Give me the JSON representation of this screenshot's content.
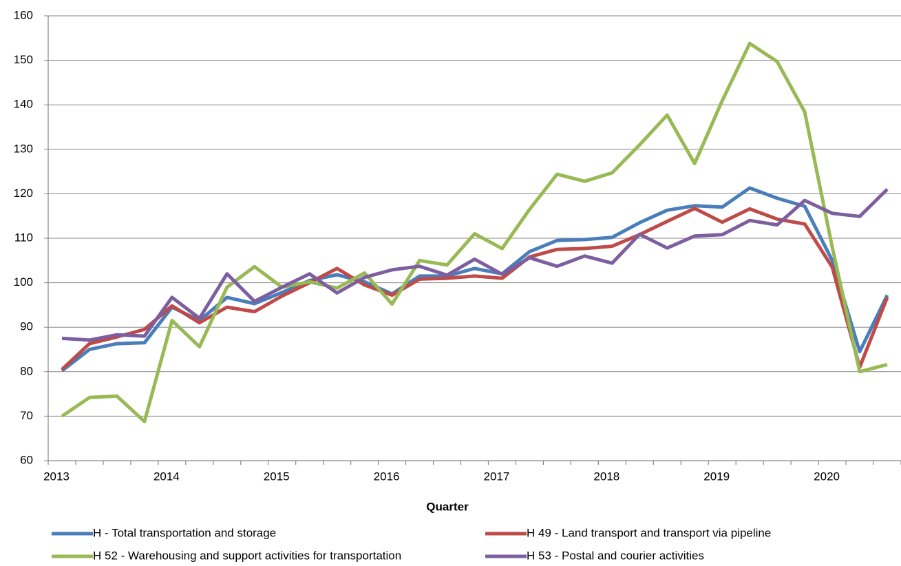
{
  "chart_data": {
    "type": "line",
    "x_label": "Quarter",
    "categories": [
      "2013",
      null,
      null,
      null,
      "2014",
      null,
      null,
      null,
      "2015",
      null,
      null,
      null,
      "2016",
      null,
      null,
      null,
      "2017",
      null,
      null,
      null,
      "2018",
      null,
      null,
      null,
      "2019",
      null,
      null,
      null,
      "2020",
      null,
      null
    ],
    "series": [
      {
        "name": "H - Total transportation and storage",
        "color": "#4a7ebb",
        "values": [
          80.2,
          85,
          86.3,
          86.5,
          94.5,
          91.5,
          96.7,
          95.3,
          97.8,
          100.5,
          101.8,
          100.2,
          97.5,
          101.5,
          101.5,
          103.2,
          102,
          107,
          109.5,
          109.7,
          110.2,
          113.5,
          116.3,
          117.3,
          117,
          121.3,
          119,
          117.2,
          105,
          84.5,
          97.2
        ]
      },
      {
        "name": "H 49 -  Land transport and transport via pipeline",
        "color": "#be4b48",
        "values": [
          80.5,
          86.3,
          87.8,
          89.5,
          94.8,
          91,
          94.5,
          93.5,
          97,
          100,
          103.2,
          99.5,
          97.2,
          100.8,
          101,
          101.5,
          101,
          105.8,
          107.5,
          107.7,
          108.2,
          110.8,
          113.8,
          116.7,
          113.6,
          116.6,
          114.3,
          113.2,
          103.5,
          81,
          96.7
        ]
      },
      {
        "name": "H 52 - Warehousing and support activities for transportation",
        "color": "#98b954",
        "values": [
          70,
          74.2,
          74.5,
          68.8,
          91.5,
          85.6,
          99,
          103.6,
          99,
          100.2,
          98.8,
          102.2,
          95.2,
          105,
          104,
          111,
          107.7,
          116.5,
          124.4,
          122.8,
          124.7,
          131,
          137.7,
          126.8,
          140.9,
          153.8,
          149.7,
          138.4,
          108,
          80,
          81.6
        ]
      },
      {
        "name": "H 53 - Postal and courier activities",
        "color": "#7d5fa0",
        "values": [
          87.5,
          87.1,
          88.3,
          88,
          96.7,
          92,
          102,
          95.8,
          99,
          102,
          97.7,
          101.2,
          102.9,
          103.7,
          101.7,
          105.3,
          101.9,
          105.6,
          103.7,
          106,
          104.4,
          110.9,
          107.8,
          110.5,
          110.8,
          114,
          113,
          118.5,
          115.6,
          114.9,
          121
        ]
      }
    ],
    "ylim": [
      60,
      160
    ],
    "yticks": [
      60,
      70,
      80,
      90,
      100,
      110,
      120,
      130,
      140,
      150,
      160
    ],
    "grid": true
  }
}
